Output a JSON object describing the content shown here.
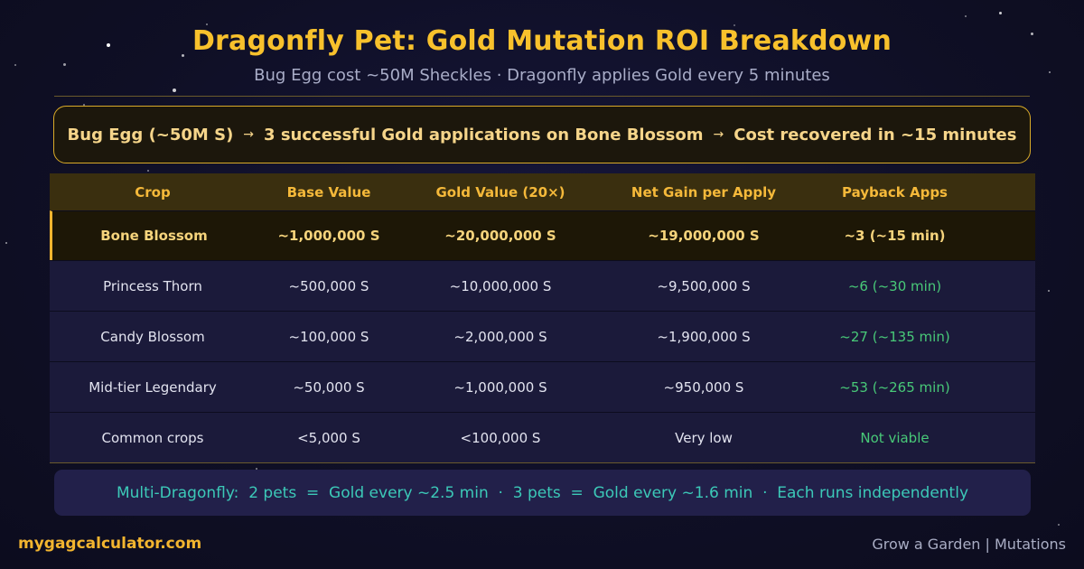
{
  "header": {
    "title": "Dragonfly Pet: Gold Mutation ROI Breakdown",
    "subtitle": "Bug Egg cost ~50M Sheckles · Dragonfly applies Gold every 5 minutes"
  },
  "banner": {
    "part1": "Bug Egg (~50M S)",
    "part2": "3 successful Gold applications on Bone Blossom",
    "part3": "Cost recovered in ~15 minutes",
    "arrow_glyph": "→"
  },
  "table": {
    "headers": [
      "Crop",
      "Base Value",
      "Gold Value (20×)",
      "Net Gain per Apply",
      "Payback Apps"
    ],
    "rows": [
      [
        "Bone Blossom",
        "~1,000,000 S",
        "~20,000,000 S",
        "~19,000,000 S",
        "~3 (~15 min)"
      ],
      [
        "Princess Thorn",
        "~500,000 S",
        "~10,000,000 S",
        "~9,500,000 S",
        "~6 (~30 min)"
      ],
      [
        "Candy Blossom",
        "~100,000 S",
        "~2,000,000 S",
        "~1,900,000 S",
        "~27 (~135 min)"
      ],
      [
        "Mid-tier Legendary",
        "~50,000 S",
        "~1,000,000 S",
        "~950,000 S",
        "~53 (~265 min)"
      ],
      [
        "Common crops",
        "<5,000 S",
        "<100,000 S",
        "Very low",
        "Not viable"
      ]
    ]
  },
  "multi_note": "Multi-Dragonfly:  2 pets  =  Gold every ~2.5 min  ·  3 pets  =  Gold every ~1.6 min  ·  Each runs independently",
  "footer": {
    "site": "mygagcalculator.com",
    "section": "Grow a Garden | Mutations"
  },
  "colors": {
    "accent_gold": "#f8c12c",
    "positive_green": "#48c978",
    "note_teal": "#3cc9b8"
  }
}
